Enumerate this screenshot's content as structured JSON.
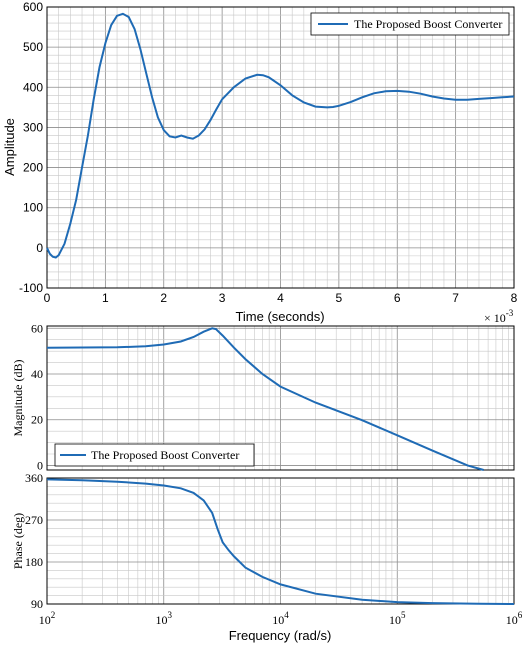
{
  "chart_data": [
    {
      "type": "line",
      "title": "",
      "xlabel": "Time (seconds)",
      "ylabel": "Amplitude",
      "xlim": [
        0,
        8
      ],
      "ylim": [
        -100,
        600
      ],
      "xticks": [
        0,
        1,
        2,
        3,
        4,
        5,
        6,
        7,
        8
      ],
      "yticks": [
        -100,
        0,
        100,
        200,
        300,
        400,
        500,
        600
      ],
      "grid": "major and minor",
      "legend": "top-right",
      "series": [
        {
          "name": "The Proposed Boost Converter",
          "color": "#1f6bb5",
          "x": [
            0,
            0.05,
            0.1,
            0.15,
            0.2,
            0.3,
            0.4,
            0.5,
            0.6,
            0.7,
            0.8,
            0.9,
            1.0,
            1.1,
            1.2,
            1.3,
            1.4,
            1.5,
            1.6,
            1.7,
            1.8,
            1.9,
            2.0,
            2.1,
            2.2,
            2.3,
            2.4,
            2.5,
            2.6,
            2.7,
            2.8,
            2.9,
            3.0,
            3.2,
            3.4,
            3.6,
            3.7,
            3.8,
            4.0,
            4.2,
            4.4,
            4.6,
            4.8,
            4.9,
            5.0,
            5.2,
            5.4,
            5.6,
            5.8,
            6.0,
            6.2,
            6.4,
            6.6,
            6.8,
            7.0,
            7.2,
            7.4,
            7.6,
            7.8,
            8.0
          ],
          "y": [
            0,
            -15,
            -22,
            -24,
            -18,
            10,
            60,
            120,
            200,
            280,
            370,
            450,
            510,
            555,
            578,
            583,
            575,
            545,
            495,
            435,
            375,
            325,
            293,
            278,
            275,
            280,
            275,
            272,
            280,
            295,
            318,
            345,
            370,
            400,
            422,
            431,
            430,
            425,
            405,
            380,
            362,
            352,
            350,
            351,
            354,
            363,
            375,
            385,
            390,
            391,
            389,
            384,
            377,
            372,
            369,
            369,
            371,
            373,
            375,
            377
          ]
        }
      ]
    },
    {
      "type": "line",
      "title": "",
      "xlabel": "",
      "ylabel": "Magnitude (dB)",
      "xscale": "log",
      "xlim": [
        100,
        1000000
      ],
      "ylim": [
        -2,
        61
      ],
      "yticks": [
        0,
        20,
        40,
        60
      ],
      "exponent_label": "× 10",
      "exponent_power": "-3",
      "grid": "major and minor",
      "legend": "bottom-left",
      "series": [
        {
          "name": "The Proposed Boost Converter",
          "color": "#1f6bb5",
          "x": [
            100,
            200,
            400,
            700,
            1000,
            1400,
            1800,
            2200,
            2600,
            2800,
            3200,
            4000,
            5000,
            7000,
            10000,
            20000,
            50000,
            100000,
            200000,
            400000,
            550000
          ],
          "y": [
            51.5,
            51.6,
            51.7,
            52.1,
            52.9,
            54.2,
            56.2,
            58.5,
            60.0,
            59.6,
            56.8,
            51.5,
            46.5,
            40.0,
            34.5,
            27.5,
            19.8,
            13.2,
            6.5,
            0,
            -2
          ]
        }
      ]
    },
    {
      "type": "line",
      "title": "",
      "xlabel": "Frequency (rad/s)",
      "ylabel": "Phase (deg)",
      "xscale": "log",
      "xlim": [
        100,
        1000000
      ],
      "ylim": [
        90,
        360
      ],
      "yticks": [
        90,
        180,
        270,
        360
      ],
      "xtick_labels": [
        {
          "base": "10",
          "exp": "2"
        },
        {
          "base": "10",
          "exp": "3"
        },
        {
          "base": "10",
          "exp": "4"
        },
        {
          "base": "10",
          "exp": "5"
        },
        {
          "base": "10",
          "exp": "6"
        }
      ],
      "grid": "major and minor",
      "series": [
        {
          "name": "The Proposed Boost Converter",
          "color": "#1f6bb5",
          "x": [
            100,
            200,
            400,
            700,
            1000,
            1400,
            1800,
            2200,
            2600,
            2900,
            3200,
            3600,
            4000,
            5000,
            7000,
            10000,
            20000,
            50000,
            100000,
            200000,
            500000,
            1000000
          ],
          "y": [
            357,
            355,
            352,
            348,
            344,
            338,
            328,
            312,
            285,
            250,
            222,
            205,
            192,
            168,
            148,
            132,
            112,
            99,
            94,
            92,
            90.5,
            90
          ]
        }
      ]
    }
  ]
}
